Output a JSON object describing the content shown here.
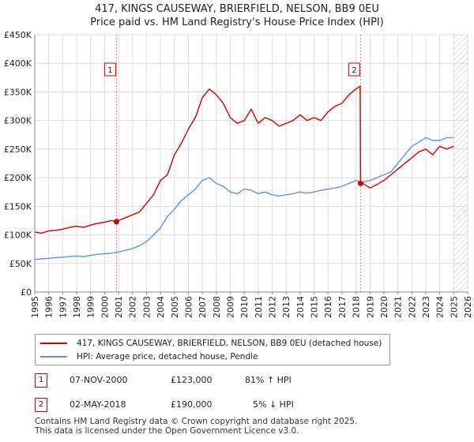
{
  "title_line1": "417, KINGS CAUSEWAY, BRIERFIELD, NELSON, BB9 0EU",
  "title_line2": "Price paid vs. HM Land Registry's House Price Index (HPI)",
  "colors": {
    "property": "#cc0000",
    "hpi": "#6495d5",
    "grid": "#dddddd",
    "vline": "#e88080",
    "hatch": "#c8c8c8"
  },
  "chart_data": {
    "type": "line",
    "xlim": [
      1995,
      2026
    ],
    "ylim": [
      0,
      450000
    ],
    "y_ticks": [
      0,
      50000,
      100000,
      150000,
      200000,
      250000,
      300000,
      350000,
      400000,
      450000
    ],
    "y_tick_labels": [
      "£0",
      "£50K",
      "£100K",
      "£150K",
      "£200K",
      "£250K",
      "£300K",
      "£350K",
      "£400K",
      "£450K"
    ],
    "x_ticks": [
      1995,
      1996,
      1997,
      1998,
      1999,
      2000,
      2001,
      2002,
      2003,
      2004,
      2005,
      2006,
      2007,
      2008,
      2009,
      2010,
      2011,
      2012,
      2013,
      2014,
      2015,
      2016,
      2017,
      2018,
      2019,
      2020,
      2021,
      2022,
      2023,
      2024,
      2025,
      2026
    ],
    "x_tick_labels": [
      "1995",
      "1996",
      "1997",
      "1998",
      "1999",
      "2000",
      "2001",
      "2002",
      "2003",
      "2004",
      "2005",
      "2006",
      "2007",
      "2008",
      "2009",
      "2010",
      "2011",
      "2012",
      "2013",
      "2014",
      "2015",
      "2016",
      "2017",
      "2018",
      "2019",
      "2020",
      "2021",
      "2022",
      "2023",
      "2024",
      "2025",
      "2026"
    ],
    "hatch_from": 2025.0,
    "series": [
      {
        "name": "417, KINGS CAUSEWAY, BRIERFIELD, NELSON, BB9 0EU (detached house)",
        "x": [
          1995.0,
          1995.5,
          1996.0,
          1996.5,
          1997.0,
          1997.5,
          1998.0,
          1998.5,
          1999.0,
          1999.5,
          2000.0,
          2000.5,
          2000.85,
          2001.0,
          2001.5,
          2002.0,
          2002.5,
          2003.0,
          2003.5,
          2004.0,
          2004.5,
          2005.0,
          2005.5,
          2006.0,
          2006.5,
          2007.0,
          2007.5,
          2008.0,
          2008.5,
          2009.0,
          2009.5,
          2010.0,
          2010.5,
          2011.0,
          2011.5,
          2012.0,
          2012.5,
          2013.0,
          2013.5,
          2014.0,
          2014.5,
          2015.0,
          2015.5,
          2016.0,
          2016.5,
          2017.0,
          2017.5,
          2018.0,
          2018.3,
          2018.33,
          2018.5,
          2019.0,
          2019.5,
          2020.0,
          2020.5,
          2021.0,
          2021.5,
          2022.0,
          2022.5,
          2023.0,
          2023.5,
          2024.0,
          2024.5,
          2025.0
        ],
        "y": [
          105000,
          103000,
          107000,
          108000,
          110000,
          113000,
          115000,
          113000,
          117000,
          120000,
          122000,
          125000,
          123000,
          125000,
          130000,
          135000,
          140000,
          155000,
          170000,
          195000,
          205000,
          240000,
          260000,
          285000,
          305000,
          340000,
          355000,
          345000,
          330000,
          305000,
          295000,
          300000,
          320000,
          295000,
          305000,
          300000,
          290000,
          295000,
          300000,
          310000,
          300000,
          305000,
          300000,
          315000,
          325000,
          330000,
          345000,
          355000,
          360000,
          190000,
          190000,
          182000,
          188000,
          195000,
          205000,
          215000,
          225000,
          235000,
          245000,
          250000,
          240000,
          255000,
          250000,
          255000
        ]
      },
      {
        "name": "HPI: Average price, detached house, Pendle",
        "x": [
          1995.0,
          1995.5,
          1996.0,
          1996.5,
          1997.0,
          1997.5,
          1998.0,
          1998.5,
          1999.0,
          1999.5,
          2000.0,
          2000.5,
          2001.0,
          2001.5,
          2002.0,
          2002.5,
          2003.0,
          2003.5,
          2004.0,
          2004.5,
          2005.0,
          2005.5,
          2006.0,
          2006.5,
          2007.0,
          2007.5,
          2008.0,
          2008.5,
          2009.0,
          2009.5,
          2010.0,
          2010.5,
          2011.0,
          2011.5,
          2012.0,
          2012.5,
          2013.0,
          2013.5,
          2014.0,
          2014.5,
          2015.0,
          2015.5,
          2016.0,
          2016.5,
          2017.0,
          2017.5,
          2018.0,
          2018.5,
          2019.0,
          2019.5,
          2020.0,
          2020.5,
          2021.0,
          2021.5,
          2022.0,
          2022.5,
          2023.0,
          2023.5,
          2024.0,
          2024.5,
          2025.0
        ],
        "y": [
          57000,
          58000,
          59000,
          60000,
          61000,
          62000,
          63000,
          62000,
          64000,
          66000,
          67000,
          68000,
          70000,
          73000,
          76000,
          81000,
          88000,
          100000,
          112000,
          132000,
          145000,
          160000,
          170000,
          180000,
          195000,
          200000,
          190000,
          185000,
          175000,
          172000,
          180000,
          178000,
          172000,
          175000,
          170000,
          168000,
          170000,
          172000,
          175000,
          173000,
          175000,
          178000,
          180000,
          182000,
          185000,
          190000,
          195000,
          192000,
          195000,
          200000,
          205000,
          210000,
          225000,
          240000,
          255000,
          262000,
          270000,
          265000,
          265000,
          270000,
          270000
        ]
      }
    ],
    "sales": [
      {
        "label": "1",
        "x": 2000.85,
        "y": 123000
      },
      {
        "label": "2",
        "x": 2018.33,
        "y": 190000
      }
    ]
  },
  "legend": {
    "property": "417, KINGS CAUSEWAY, BRIERFIELD, NELSON, BB9 0EU (detached house)",
    "hpi": "HPI: Average price, detached house, Pendle"
  },
  "transactions": [
    {
      "num": "1",
      "date": "07-NOV-2000",
      "price": "£123,000",
      "hpi": "81% ↑ HPI"
    },
    {
      "num": "2",
      "date": "02-MAY-2018",
      "price": "£190,000",
      "hpi": "5% ↓ HPI"
    }
  ],
  "footer": {
    "line1": "Contains HM Land Registry data © Crown copyright and database right 2025.",
    "line2": "This data is licensed under the Open Government Licence v3.0."
  }
}
